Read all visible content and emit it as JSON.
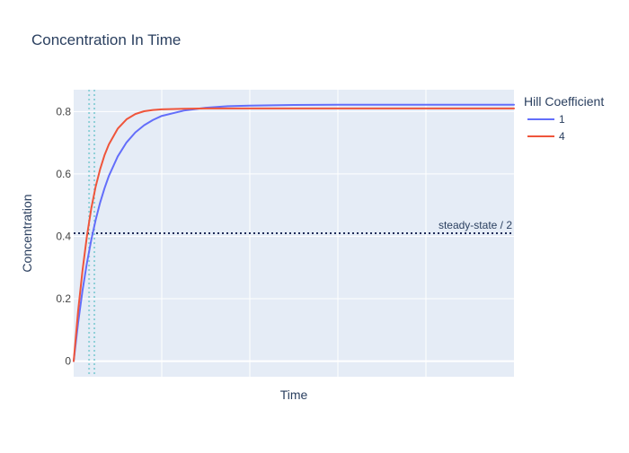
{
  "chart_data": {
    "type": "line",
    "title": "Concentration In Time",
    "xlabel": "Time",
    "ylabel": "Concentration",
    "xlim": [
      0,
      1
    ],
    "ylim": [
      -0.05,
      0.87
    ],
    "yticks": [
      0,
      0.2,
      0.4,
      0.6,
      0.8
    ],
    "ytick_labels": [
      "0",
      "0.2",
      "0.4",
      "0.6",
      "0.8"
    ],
    "xgrid": [
      0.2,
      0.4,
      0.6,
      0.8
    ],
    "grid": true,
    "legend": {
      "title": "Hill Coefficient",
      "placement": "top-right-outside"
    },
    "series": [
      {
        "name": "1",
        "color": "#636efa",
        "x": [
          0,
          0.01,
          0.02,
          0.03,
          0.04,
          0.05,
          0.06,
          0.07,
          0.08,
          0.1,
          0.12,
          0.14,
          0.16,
          0.18,
          0.2,
          0.25,
          0.3,
          0.35,
          0.4,
          0.45,
          0.5,
          0.6,
          0.7,
          0.8,
          0.9,
          1.0
        ],
        "y": [
          0,
          0.122,
          0.226,
          0.314,
          0.389,
          0.453,
          0.508,
          0.554,
          0.594,
          0.656,
          0.701,
          0.733,
          0.756,
          0.773,
          0.786,
          0.803,
          0.812,
          0.817,
          0.819,
          0.82,
          0.821,
          0.822,
          0.822,
          0.822,
          0.822,
          0.822
        ]
      },
      {
        "name": "4",
        "color": "#ef553b",
        "x": [
          0,
          0.01,
          0.02,
          0.03,
          0.04,
          0.05,
          0.06,
          0.07,
          0.08,
          0.1,
          0.12,
          0.14,
          0.16,
          0.18,
          0.2,
          0.25,
          0.3,
          0.35,
          0.4,
          0.45,
          0.5,
          0.6,
          0.7,
          0.8,
          0.9,
          1.0
        ],
        "y": [
          0,
          0.16,
          0.29,
          0.4,
          0.49,
          0.56,
          0.615,
          0.66,
          0.695,
          0.745,
          0.775,
          0.792,
          0.801,
          0.805,
          0.807,
          0.809,
          0.81,
          0.81,
          0.81,
          0.81,
          0.81,
          0.81,
          0.81,
          0.81,
          0.81,
          0.81
        ]
      }
    ],
    "hlines": [
      {
        "y": 0.41,
        "label": "steady-state / 2",
        "color": "#1f2d5a",
        "style": "dotted"
      }
    ],
    "vlines": [
      {
        "x": 0.035,
        "color": "#8fd0d8",
        "style": "dotted"
      },
      {
        "x": 0.047,
        "color": "#8fd0d8",
        "style": "dotted"
      }
    ],
    "colors": {
      "plot_bg": "#e5ecf6",
      "grid": "#ffffff",
      "text": "#2a3f5f",
      "tick_text": "#444444"
    }
  }
}
